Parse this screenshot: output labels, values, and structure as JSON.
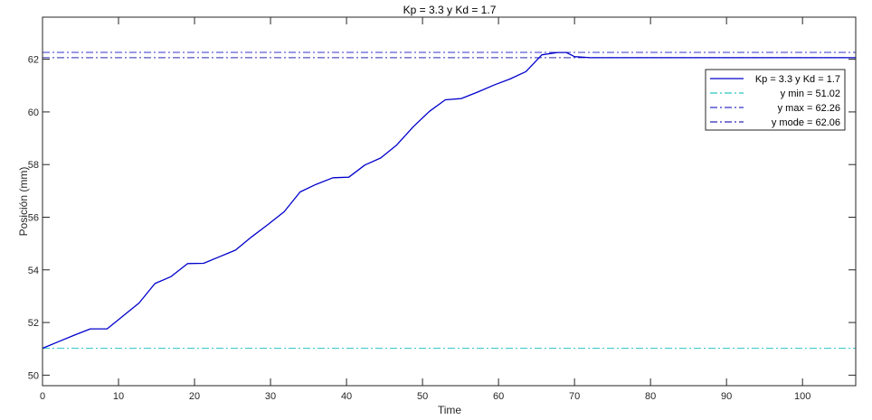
{
  "chart_data": {
    "type": "line",
    "title": "Kp = 3.3 y Kd = 1.7",
    "xlabel": "Time",
    "ylabel": "Posición (mm)",
    "xlim": [
      0,
      107
    ],
    "ylim": [
      49.6,
      63.6
    ],
    "xticks": [
      0,
      10,
      20,
      30,
      40,
      50,
      60,
      70,
      80,
      90,
      100
    ],
    "yticks": [
      50,
      52,
      54,
      56,
      58,
      60,
      62
    ],
    "grid": false,
    "legend_position": "top-right",
    "series": [
      {
        "name": "Kp = 3.3 y Kd = 1.7",
        "color": "#0000cc",
        "style": "solid",
        "x": [
          0,
          2.1,
          4.2,
          6.3,
          8.5,
          10.6,
          12.7,
          14.8,
          16.9,
          19.1,
          21.2,
          23.3,
          25.4,
          27.5,
          29.7,
          31.8,
          33.9,
          36.0,
          38.2,
          40.3,
          42.4,
          44.5,
          46.6,
          48.8,
          50.9,
          53.0,
          55.1,
          57.2,
          59.4,
          61.5,
          63.6,
          65.7,
          67.8,
          68.9,
          70.0,
          72.1,
          107
        ],
        "y": [
          51.02,
          51.27,
          51.52,
          51.76,
          51.76,
          52.25,
          52.74,
          53.48,
          53.74,
          54.24,
          54.25,
          54.5,
          54.75,
          55.25,
          55.73,
          56.21,
          56.96,
          57.25,
          57.5,
          57.52,
          57.98,
          58.25,
          58.74,
          59.44,
          60.02,
          60.46,
          60.51,
          60.75,
          61.02,
          61.25,
          61.53,
          62.17,
          62.26,
          62.26,
          62.1,
          62.06,
          62.06
        ]
      }
    ],
    "reference_lines": [
      {
        "name": "y min = 51.02",
        "value": 51.02,
        "color": "#29c4c4",
        "style": "dash-dot"
      },
      {
        "name": "y max = 62.26",
        "value": 62.26,
        "color": "#3333cc",
        "style": "dash-dot"
      },
      {
        "name": "y mode = 62.06",
        "value": 62.06,
        "color": "#2a2ab0",
        "style": "dash-dot"
      }
    ]
  }
}
